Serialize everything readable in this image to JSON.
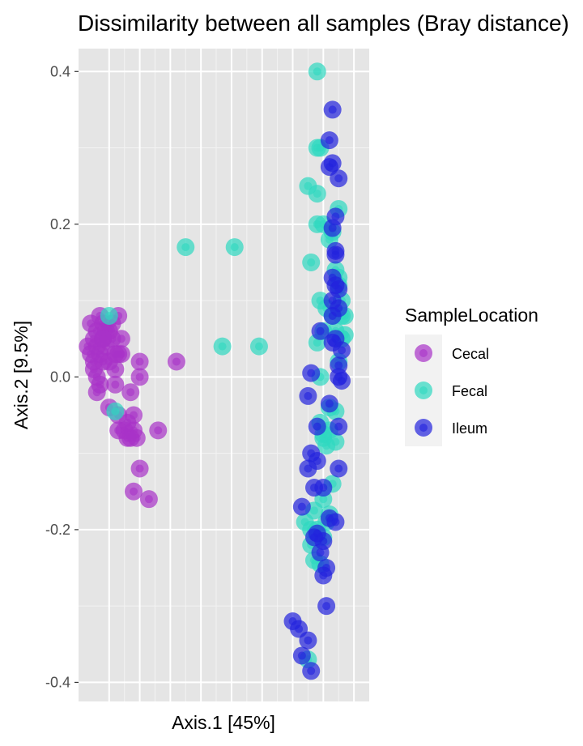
{
  "chart_data": {
    "type": "scatter",
    "title": "Dissimilarity between all samples (Bray distance)",
    "xlabel": "Axis.1   [45%]",
    "ylabel": "Axis.2   [9.5%]",
    "xlim": [
      -0.5,
      0.45
    ],
    "ylim": [
      -0.425,
      0.43
    ],
    "yticks": [
      -0.4,
      -0.2,
      0.0,
      0.2,
      0.4
    ],
    "ytick_labels": [
      "-0.4",
      "-0.2",
      "0.0",
      "0.2",
      "0.4"
    ],
    "xticks": [
      -0.4,
      -0.3,
      -0.2,
      -0.1,
      0.0,
      0.1,
      0.2,
      0.3,
      0.4
    ],
    "grid": true,
    "legend": {
      "title": "SampleLocation",
      "placement": "right"
    },
    "series": [
      {
        "name": "Cecal",
        "color": "#a832c8",
        "points": [
          [
            -0.46,
            0.07
          ],
          [
            -0.45,
            0.05
          ],
          [
            -0.44,
            0.06
          ],
          [
            -0.43,
            0.08
          ],
          [
            -0.42,
            0.07
          ],
          [
            -0.41,
            0.06
          ],
          [
            -0.47,
            0.04
          ],
          [
            -0.46,
            0.03
          ],
          [
            -0.45,
            0.02
          ],
          [
            -0.44,
            0.04
          ],
          [
            -0.43,
            0.03
          ],
          [
            -0.42,
            0.05
          ],
          [
            -0.41,
            0.04
          ],
          [
            -0.4,
            0.06
          ],
          [
            -0.39,
            0.05
          ],
          [
            -0.38,
            0.03
          ],
          [
            -0.37,
            0.08
          ],
          [
            -0.36,
            0.05
          ],
          [
            -0.45,
            0.01
          ],
          [
            -0.44,
            0.0
          ],
          [
            -0.43,
            -0.01
          ],
          [
            -0.44,
            -0.02
          ],
          [
            -0.42,
            0.02
          ],
          [
            -0.4,
            0.02
          ],
          [
            -0.38,
            0.01
          ],
          [
            -0.37,
            0.03
          ],
          [
            -0.36,
            0.03
          ],
          [
            -0.38,
            -0.01
          ],
          [
            -0.37,
            -0.05
          ],
          [
            -0.4,
            -0.04
          ],
          [
            -0.35,
            -0.07
          ],
          [
            -0.34,
            -0.08
          ],
          [
            -0.33,
            -0.08
          ],
          [
            -0.32,
            -0.07
          ],
          [
            -0.34,
            -0.06
          ],
          [
            -0.33,
            -0.02
          ],
          [
            -0.32,
            -0.05
          ],
          [
            -0.37,
            -0.07
          ],
          [
            -0.31,
            -0.08
          ],
          [
            -0.3,
            0.02
          ],
          [
            -0.3,
            0.0
          ],
          [
            -0.24,
            -0.07
          ],
          [
            -0.3,
            -0.12
          ],
          [
            -0.32,
            -0.15
          ],
          [
            -0.27,
            -0.16
          ],
          [
            -0.18,
            0.02
          ],
          [
            -0.42,
            0.05
          ],
          [
            -0.39,
            0.07
          ]
        ]
      },
      {
        "name": "Fecal",
        "color": "#2ed8c0",
        "points": [
          [
            -0.4,
            0.08
          ],
          [
            -0.38,
            -0.045
          ],
          [
            -0.15,
            0.17
          ],
          [
            -0.03,
            0.04
          ],
          [
            0.01,
            0.17
          ],
          [
            0.09,
            0.04
          ],
          [
            0.28,
            0.4
          ],
          [
            0.28,
            0.3
          ],
          [
            0.29,
            0.3
          ],
          [
            0.25,
            0.25
          ],
          [
            0.28,
            0.24
          ],
          [
            0.3,
            0.2
          ],
          [
            0.28,
            0.2
          ],
          [
            0.35,
            0.22
          ],
          [
            0.33,
            0.19
          ],
          [
            0.32,
            0.18
          ],
          [
            0.26,
            0.15
          ],
          [
            0.34,
            0.14
          ],
          [
            0.35,
            0.13
          ],
          [
            0.35,
            0.12
          ],
          [
            0.29,
            0.1
          ],
          [
            0.31,
            0.09
          ],
          [
            0.33,
            0.08
          ],
          [
            0.36,
            0.1
          ],
          [
            0.36,
            0.08
          ],
          [
            0.37,
            0.08
          ],
          [
            0.34,
            0.06
          ],
          [
            0.36,
            0.05
          ],
          [
            0.37,
            0.055
          ],
          [
            0.28,
            0.045
          ],
          [
            0.3,
            0.06
          ],
          [
            0.35,
            0.02
          ],
          [
            0.29,
            0.0
          ],
          [
            0.32,
            -0.04
          ],
          [
            0.34,
            -0.045
          ],
          [
            0.29,
            -0.06
          ],
          [
            0.3,
            -0.08
          ],
          [
            0.31,
            -0.09
          ],
          [
            0.3,
            -0.075
          ],
          [
            0.32,
            -0.07
          ],
          [
            0.34,
            -0.085
          ],
          [
            0.33,
            -0.14
          ],
          [
            0.27,
            -0.175
          ],
          [
            0.32,
            -0.18
          ],
          [
            0.24,
            -0.19
          ],
          [
            0.28,
            -0.2
          ],
          [
            0.3,
            -0.21
          ],
          [
            0.26,
            -0.22
          ],
          [
            0.27,
            -0.24
          ],
          [
            0.29,
            -0.245
          ],
          [
            0.25,
            -0.37
          ],
          [
            0.31,
            -0.19
          ],
          [
            0.3,
            -0.16
          ],
          [
            0.26,
            -0.2
          ]
        ]
      },
      {
        "name": "Ileum",
        "color": "#2222dd",
        "points": [
          [
            0.33,
            0.35
          ],
          [
            0.32,
            0.31
          ],
          [
            0.32,
            0.275
          ],
          [
            0.33,
            0.28
          ],
          [
            0.35,
            0.26
          ],
          [
            0.34,
            0.21
          ],
          [
            0.33,
            0.195
          ],
          [
            0.34,
            0.165
          ],
          [
            0.34,
            0.16
          ],
          [
            0.33,
            0.13
          ],
          [
            0.34,
            0.12
          ],
          [
            0.35,
            0.115
          ],
          [
            0.33,
            0.1
          ],
          [
            0.35,
            0.09
          ],
          [
            0.33,
            0.08
          ],
          [
            0.29,
            0.06
          ],
          [
            0.33,
            0.045
          ],
          [
            0.34,
            0.05
          ],
          [
            0.36,
            0.035
          ],
          [
            0.35,
            0.015
          ],
          [
            0.26,
            0.005
          ],
          [
            0.35,
            0.0
          ],
          [
            0.36,
            -0.005
          ],
          [
            0.25,
            -0.025
          ],
          [
            0.32,
            -0.035
          ],
          [
            0.35,
            -0.065
          ],
          [
            0.28,
            -0.065
          ],
          [
            0.26,
            -0.1
          ],
          [
            0.28,
            -0.11
          ],
          [
            0.25,
            -0.12
          ],
          [
            0.35,
            -0.12
          ],
          [
            0.27,
            -0.145
          ],
          [
            0.3,
            -0.145
          ],
          [
            0.23,
            -0.17
          ],
          [
            0.32,
            -0.185
          ],
          [
            0.34,
            -0.19
          ],
          [
            0.28,
            -0.205
          ],
          [
            0.27,
            -0.21
          ],
          [
            0.3,
            -0.215
          ],
          [
            0.29,
            -0.23
          ],
          [
            0.3,
            -0.26
          ],
          [
            0.31,
            -0.25
          ],
          [
            0.31,
            -0.3
          ],
          [
            0.2,
            -0.32
          ],
          [
            0.22,
            -0.33
          ],
          [
            0.25,
            -0.345
          ],
          [
            0.23,
            -0.365
          ],
          [
            0.26,
            -0.385
          ]
        ]
      }
    ]
  }
}
